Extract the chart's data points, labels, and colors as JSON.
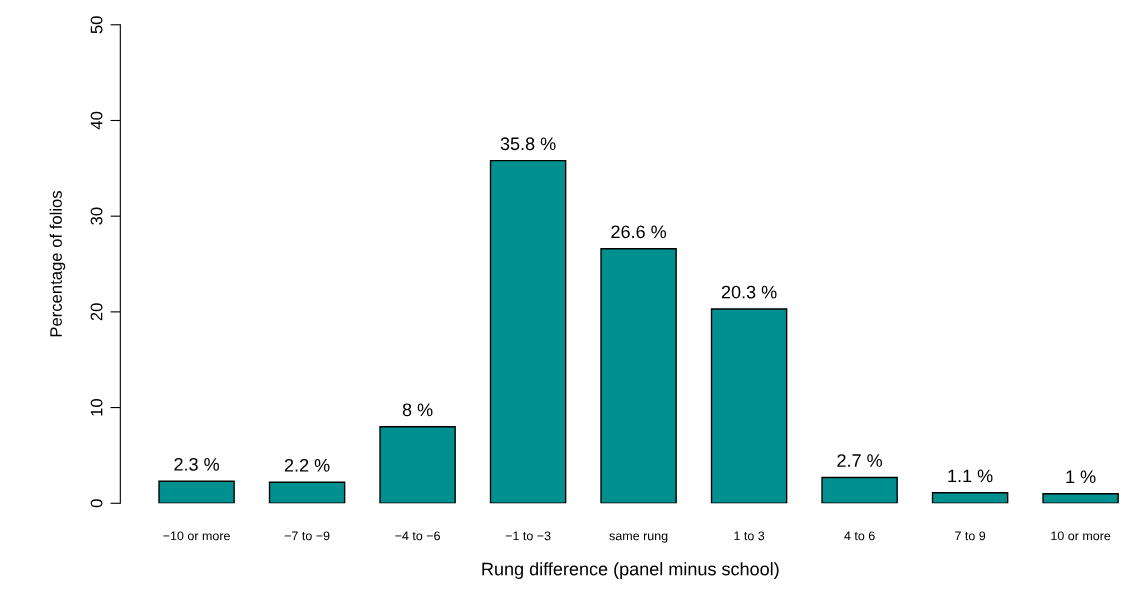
{
  "chart_data": {
    "type": "bar",
    "xlabel": "Rung difference (panel minus school)",
    "ylabel": "Percentage of folios",
    "categories": [
      "−10 or more",
      "−7 to −9",
      "−4 to −6",
      "−1 to −3",
      "same rung",
      "1 to 3",
      "4 to 6",
      "7 to 9",
      "10 or more"
    ],
    "values": [
      2.3,
      2.2,
      8,
      35.8,
      26.6,
      20.3,
      2.7,
      1.1,
      1
    ],
    "value_labels": [
      "2.3 %",
      "2.2 %",
      "8 %",
      "35.8 %",
      "26.6 %",
      "20.3 %",
      "2.7 %",
      "1.1 %",
      "1 %"
    ],
    "color": "#009090",
    "ylim": [
      0,
      50
    ],
    "yticks": [
      0,
      10,
      20,
      30,
      40,
      50
    ],
    "grid": false,
    "legend": false
  }
}
